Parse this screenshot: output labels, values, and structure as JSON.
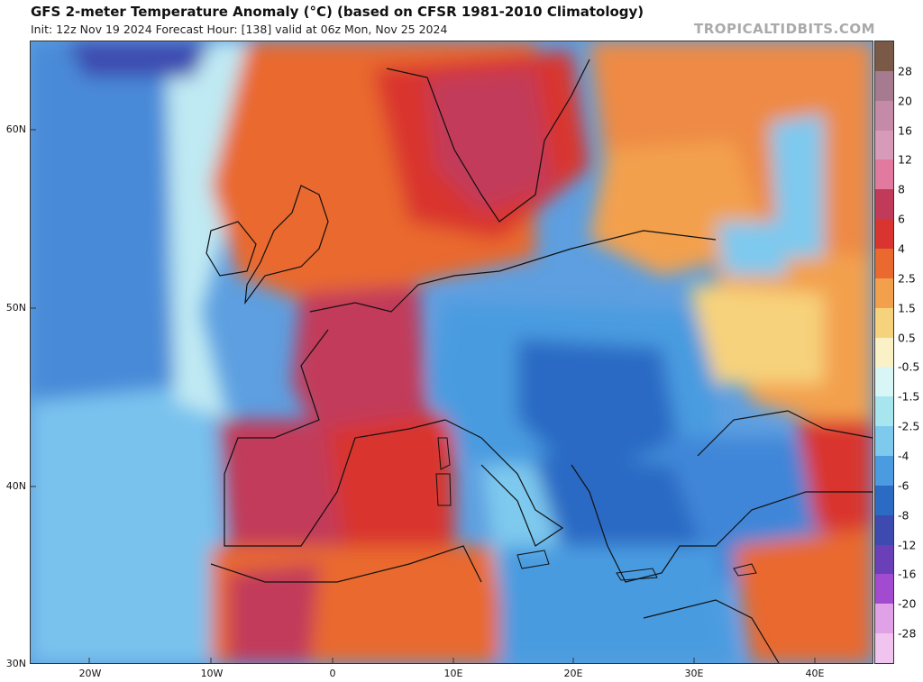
{
  "header": {
    "title": "GFS 2-meter Temperature Anomaly (°C) (based on CFSR 1981-2010 Climatology)",
    "subtitle": "Init: 12z Nov 19 2024   Forecast Hour: [138]   valid at 06z Mon, Nov 25 2024",
    "brand": "TROPICALTIDBITS.COM"
  },
  "axes": {
    "lat_labels": [
      "60N",
      "50N",
      "40N",
      "30N"
    ],
    "lon_labels": [
      "20W",
      "10W",
      "0",
      "10E",
      "20E",
      "30E",
      "40E"
    ]
  },
  "colorbar": {
    "labels": [
      "28",
      "20",
      "16",
      "12",
      "8",
      "6",
      "4",
      "2.5",
      "1.5",
      "0.5",
      "-0.5",
      "-1.5",
      "-2.5",
      "-4",
      "-6",
      "-8",
      "-12",
      "-16",
      "-20",
      "-28"
    ],
    "colors": [
      "#7a5a46",
      "#a77b8f",
      "#c58aa8",
      "#d79ab8",
      "#e27aa0",
      "#c23a5a",
      "#d9342f",
      "#e9692e",
      "#f3a04d",
      "#f7d27c",
      "#fbf1c6",
      "#d8f6f5",
      "#a7e6ef",
      "#7ec9ee",
      "#4a9be0",
      "#2b6bc4",
      "#3d4bb0",
      "#6a3fb8",
      "#a24bd0",
      "#e1a1e6",
      "#f0c4ee"
    ]
  }
}
